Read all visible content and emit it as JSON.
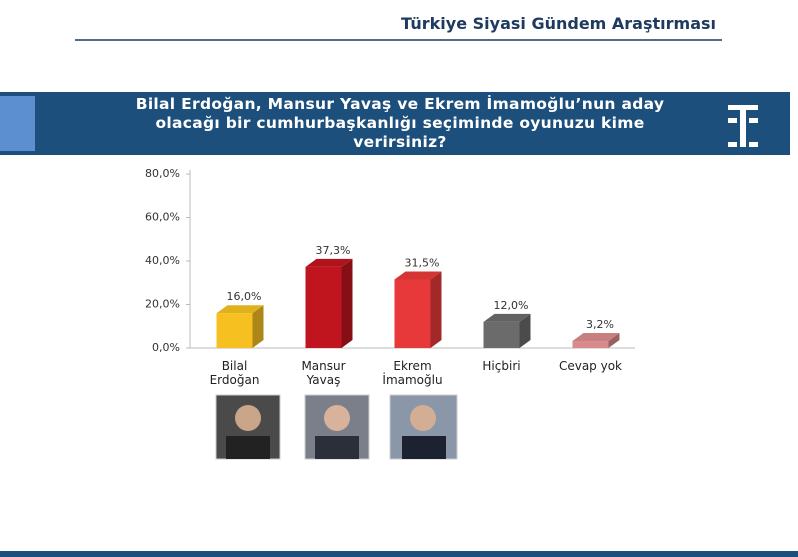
{
  "header": {
    "title": "Türkiye Siyasi Gündem Araştırması"
  },
  "chart_data": {
    "type": "bar",
    "title": "Bilal Erdoğan, Mansur Yavaş ve Ekrem İmamoğlu’nun aday olacağı bir cumhurbaşkanlığı seçiminde oyunuzu kime verirsiniz?",
    "categories": [
      "Bilal Erdoğan",
      "Mansur Yavaş",
      "Ekrem İmamoğlu",
      "Hiçbiri",
      "Cevap yok"
    ],
    "values": [
      16.0,
      37.3,
      31.5,
      12.0,
      3.2
    ],
    "value_labels": [
      "16,0%",
      "37,3%",
      "31,5%",
      "12,0%",
      "3,2%"
    ],
    "colors": [
      "#f5c020",
      "#c0151f",
      "#e8393a",
      "#6b6b6b",
      "#d98a8a"
    ],
    "ylim": [
      0,
      80
    ],
    "yticks": [
      {
        "value": 0,
        "label": "0,0%"
      },
      {
        "value": 20,
        "label": "20,0%"
      },
      {
        "value": 40,
        "label": "40,0%"
      },
      {
        "value": 60,
        "label": "60,0%"
      },
      {
        "value": 80,
        "label": "80,0%"
      }
    ],
    "grid": false
  }
}
